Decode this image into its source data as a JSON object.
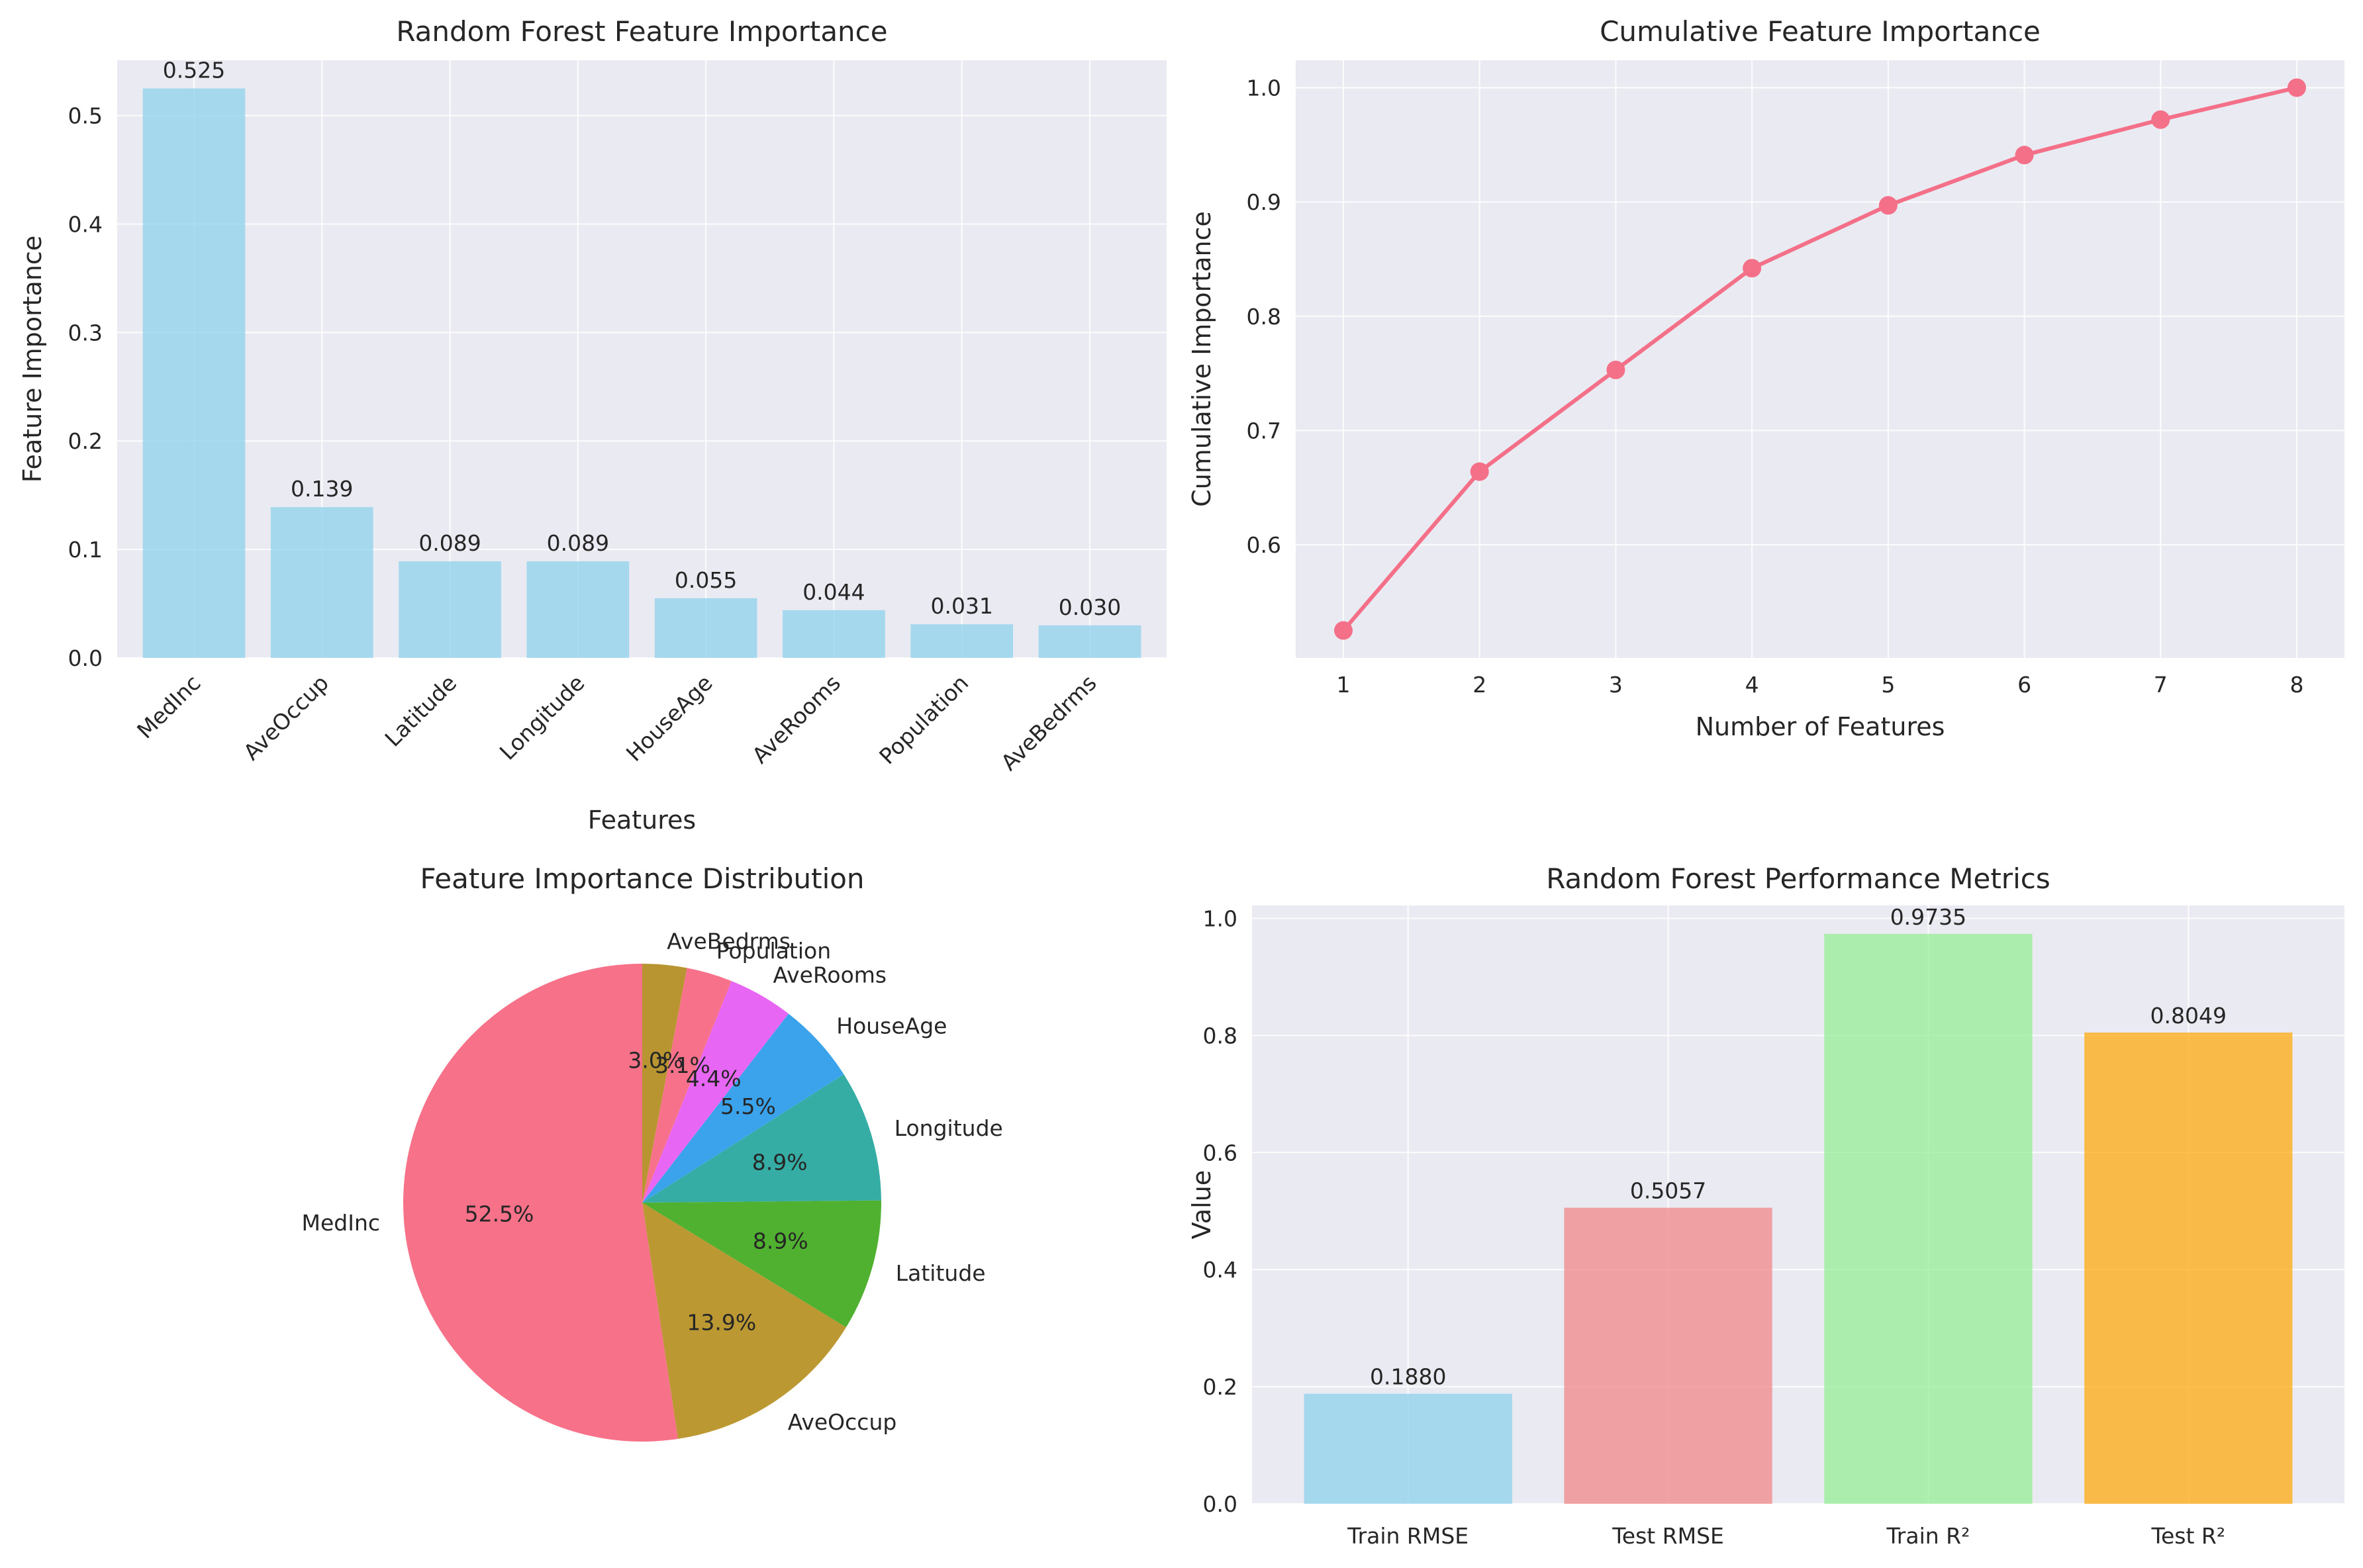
{
  "chart_data": [
    {
      "type": "bar",
      "title": "Random Forest Feature Importance",
      "xlabel": "Features",
      "ylabel": "Feature Importance",
      "categories": [
        "MedInc",
        "AveOccup",
        "Latitude",
        "Longitude",
        "HouseAge",
        "AveRooms",
        "Population",
        "AveBedrms"
      ],
      "values": [
        0.525,
        0.139,
        0.089,
        0.089,
        0.055,
        0.044,
        0.031,
        0.03
      ],
      "data_labels": [
        "0.525",
        "0.139",
        "0.089",
        "0.089",
        "0.055",
        "0.044",
        "0.031",
        "0.030"
      ],
      "ylim": [
        0,
        0.551
      ],
      "yticks": [
        0.0,
        0.1,
        0.2,
        0.3,
        0.4,
        0.5
      ],
      "ytick_labels": [
        "0.0",
        "0.1",
        "0.2",
        "0.3",
        "0.4",
        "0.5"
      ],
      "color": "#87ceeb",
      "grid": true,
      "xtick_rotation": 45
    },
    {
      "type": "line",
      "title": "Cumulative Feature Importance",
      "xlabel": "Number of Features",
      "ylabel": "Cumulative Importance",
      "x": [
        1,
        2,
        3,
        4,
        5,
        6,
        7,
        8
      ],
      "values": [
        0.525,
        0.664,
        0.753,
        0.842,
        0.897,
        0.941,
        0.972,
        1.0
      ],
      "xlim": [
        0.65,
        8.35
      ],
      "ylim": [
        0.501,
        1.024
      ],
      "yticks": [
        0.6,
        0.7,
        0.8,
        0.9,
        1.0
      ],
      "ytick_labels": [
        "0.6",
        "0.7",
        "0.8",
        "0.9",
        "1.0"
      ],
      "xtick_labels": [
        "1",
        "2",
        "3",
        "4",
        "5",
        "6",
        "7",
        "8"
      ],
      "color": "#f37088",
      "grid": true
    },
    {
      "type": "pie",
      "title": "Feature Importance Distribution",
      "labels": [
        "MedInc",
        "AveOccup",
        "Latitude",
        "Longitude",
        "HouseAge",
        "AveRooms",
        "Population",
        "AveBedrms"
      ],
      "values": [
        52.5,
        13.9,
        8.9,
        8.9,
        5.5,
        4.4,
        3.1,
        3.0
      ],
      "pct_labels": [
        "52.5%",
        "13.9%",
        "8.9%",
        "8.9%",
        "5.5%",
        "4.4%",
        "3.1%",
        "3.0%"
      ],
      "colors": [
        "#f77189",
        "#bb9832",
        "#50b131",
        "#36ada4",
        "#3ba3ec",
        "#e866f4",
        "#f7718a",
        "#b89530"
      ],
      "startangle": 90,
      "counterclock": true
    },
    {
      "type": "bar",
      "title": "Random Forest Performance Metrics",
      "xlabel": "",
      "ylabel": "Value",
      "categories": [
        "Train RMSE",
        "Test RMSE",
        "Train R²",
        "Test R²"
      ],
      "values": [
        0.188,
        0.5057,
        0.9735,
        0.8049
      ],
      "data_labels": [
        "0.1880",
        "0.5057",
        "0.9735",
        "0.8049"
      ],
      "ylim": [
        0,
        1.022
      ],
      "yticks": [
        0.0,
        0.2,
        0.4,
        0.6,
        0.8,
        1.0
      ],
      "ytick_labels": [
        "0.0",
        "0.2",
        "0.4",
        "0.6",
        "0.8",
        "1.0"
      ],
      "colors": [
        "#87ceeb",
        "#f08080",
        "#90ee90",
        "#ffa500"
      ],
      "grid": true
    }
  ]
}
